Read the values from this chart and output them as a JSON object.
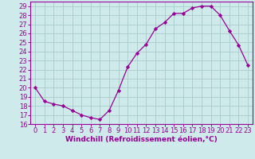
{
  "x": [
    0,
    1,
    2,
    3,
    4,
    5,
    6,
    7,
    8,
    9,
    10,
    11,
    12,
    13,
    14,
    15,
    16,
    17,
    18,
    19,
    20,
    21,
    22,
    23
  ],
  "y": [
    20.0,
    18.5,
    18.2,
    18.0,
    17.5,
    17.0,
    16.7,
    16.5,
    17.5,
    19.7,
    22.3,
    23.8,
    24.8,
    26.5,
    27.2,
    28.2,
    28.2,
    28.8,
    29.0,
    29.0,
    28.0,
    26.3,
    24.7,
    22.5
  ],
  "line_color": "#990099",
  "marker": "D",
  "marker_size": 2.2,
  "bg_color": "#ceeaea",
  "grid_color": "#aacccc",
  "xlabel": "Windchill (Refroidissement éolien,°C)",
  "xlabel_fontsize": 6.5,
  "tick_fontsize": 6.0,
  "ylim": [
    16,
    29.5
  ],
  "yticks": [
    16,
    17,
    18,
    19,
    20,
    21,
    22,
    23,
    24,
    25,
    26,
    27,
    28,
    29
  ],
  "xticks": [
    0,
    1,
    2,
    3,
    4,
    5,
    6,
    7,
    8,
    9,
    10,
    11,
    12,
    13,
    14,
    15,
    16,
    17,
    18,
    19,
    20,
    21,
    22,
    23
  ]
}
